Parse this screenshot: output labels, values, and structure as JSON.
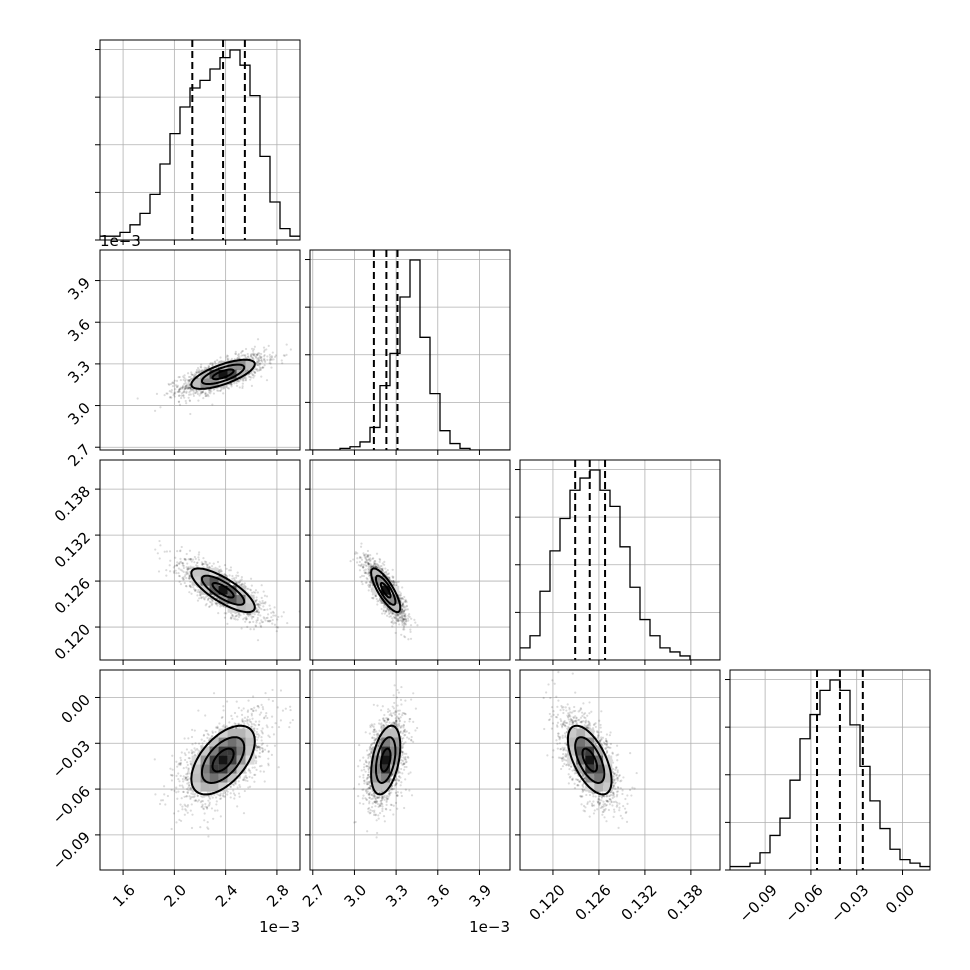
{
  "chart_data": {
    "type": "corner",
    "parameters": [
      {
        "index": 0,
        "range": [
          1.42,
          2.98
        ],
        "ticks": [
          1.6,
          2.0,
          2.4,
          2.8
        ],
        "tick_labels": [
          "1.6",
          "2.0",
          "2.4",
          "2.8"
        ],
        "offset_text": "1e−3",
        "mean": 2.38,
        "sd": 0.165,
        "quantiles": [
          2.14,
          2.38,
          2.55
        ]
      },
      {
        "index": 1,
        "range": [
          2.68,
          4.12
        ],
        "ticks": [
          2.7,
          3.0,
          3.3,
          3.6,
          3.9
        ],
        "tick_labels": [
          "2.7",
          "3.0",
          "3.3",
          "3.6",
          "3.9"
        ],
        "offset_text": "1e−3",
        "mean": 3.225,
        "sd": 0.07,
        "quantiles": [
          3.14,
          3.23,
          3.31
        ]
      },
      {
        "index": 2,
        "range": [
          0.1157,
          0.1418
        ],
        "ticks": [
          0.12,
          0.126,
          0.132,
          0.138
        ],
        "tick_labels": [
          "0.120",
          "0.126",
          "0.132",
          "0.138"
        ],
        "offset_text": "",
        "mean": 0.1248,
        "sd": 0.0019,
        "quantiles": [
          0.1229,
          0.1248,
          0.1268
        ]
      },
      {
        "index": 3,
        "range": [
          -0.113,
          0.018
        ],
        "ticks": [
          -0.09,
          -0.06,
          -0.03,
          0.0
        ],
        "tick_labels": [
          "−0.09",
          "−0.06",
          "−0.03",
          "0.00"
        ],
        "offset_text": "",
        "mean": -0.041,
        "sd": 0.015,
        "quantiles": [
          -0.056,
          -0.041,
          -0.026
        ]
      }
    ],
    "correlations": [
      {
        "pair": [
          1,
          0
        ],
        "r": 0.7
      },
      {
        "pair": [
          2,
          0
        ],
        "r": -0.78
      },
      {
        "pair": [
          2,
          1
        ],
        "r": -0.8
      },
      {
        "pair": [
          3,
          0
        ],
        "r": 0.55
      },
      {
        "pair": [
          3,
          1
        ],
        "r": 0.4
      },
      {
        "pair": [
          3,
          2
        ],
        "r": -0.6
      }
    ],
    "histograms": [
      {
        "param": 0,
        "bins": 20,
        "counts": [
          1,
          1,
          2,
          4,
          7,
          12,
          20,
          28,
          35,
          40,
          42,
          45,
          48,
          50,
          46,
          38,
          22,
          10,
          3,
          1
        ]
      },
      {
        "param": 1,
        "bins": 20,
        "counts": [
          0,
          0,
          0,
          1,
          2,
          5,
          14,
          40,
          60,
          95,
          118,
          70,
          35,
          12,
          4,
          1,
          0,
          0,
          0,
          0
        ]
      },
      {
        "param": 2,
        "bins": 20,
        "counts": [
          3,
          6,
          17,
          27,
          35,
          42,
          45,
          47,
          42,
          38,
          28,
          18,
          10,
          6,
          3,
          2,
          1,
          0,
          0,
          0
        ]
      },
      {
        "param": 3,
        "bins": 20,
        "counts": [
          1,
          1,
          2,
          5,
          10,
          15,
          26,
          38,
          45,
          52,
          55,
          52,
          42,
          30,
          20,
          12,
          6,
          3,
          2,
          1
        ]
      }
    ],
    "contour_levels": [
      0.5,
      1.0,
      1.5
    ],
    "grid": true,
    "legend": "none"
  }
}
